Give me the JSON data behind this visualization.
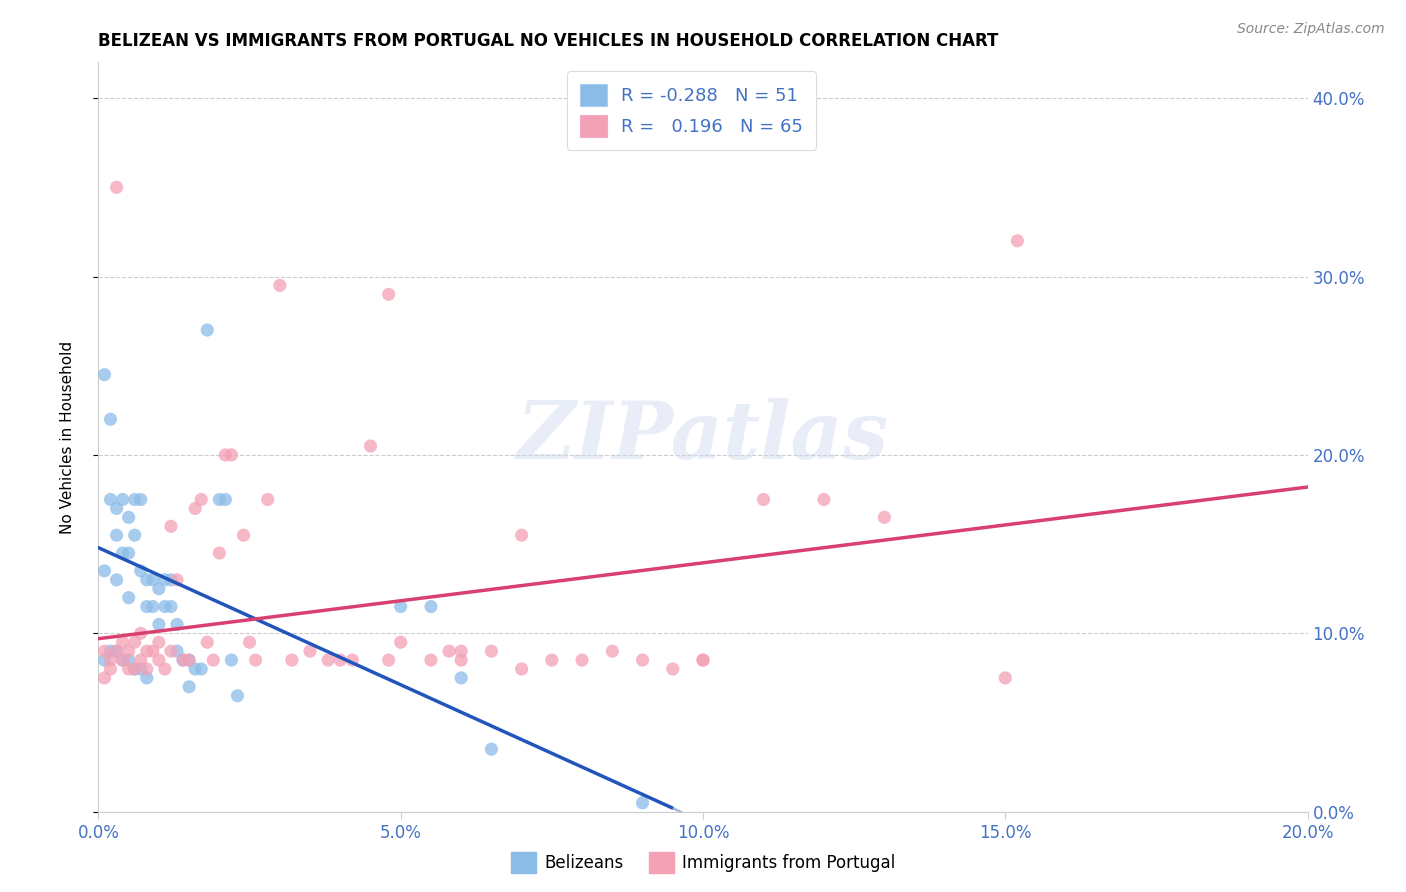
{
  "title": "BELIZEAN VS IMMIGRANTS FROM PORTUGAL NO VEHICLES IN HOUSEHOLD CORRELATION CHART",
  "source": "Source: ZipAtlas.com",
  "ylabel": "No Vehicles in Household",
  "legend_labels": [
    "Belizeans",
    "Immigrants from Portugal"
  ],
  "R_belizean": -0.288,
  "N_belizean": 51,
  "R_portugal": 0.196,
  "N_portugal": 65,
  "color_belizean": "#8bbce8",
  "color_portugal": "#f4a0b5",
  "line_color_belizean": "#2255bb",
  "line_color_portugal": "#d94070",
  "line_color_dashed": "#a0b8d8",
  "watermark": "ZIPatlas",
  "tick_color": "#4472c4",
  "xlim": [
    0,
    0.2
  ],
  "ylim": [
    0,
    0.42
  ],
  "xticks": [
    0.0,
    0.05,
    0.1,
    0.15,
    0.2
  ],
  "yticks": [
    0.0,
    0.1,
    0.2,
    0.3,
    0.4
  ],
  "bel_line_x0": 0.0,
  "bel_line_y0": 0.148,
  "bel_line_x1": 0.095,
  "bel_line_y1": 0.002,
  "por_line_x0": 0.0,
  "por_line_y0": 0.097,
  "por_line_x1": 0.2,
  "por_line_y1": 0.182,
  "bel_scatter_x": [
    0.001,
    0.001,
    0.002,
    0.002,
    0.003,
    0.003,
    0.003,
    0.004,
    0.004,
    0.005,
    0.005,
    0.005,
    0.006,
    0.006,
    0.007,
    0.007,
    0.008,
    0.008,
    0.009,
    0.009,
    0.01,
    0.01,
    0.011,
    0.011,
    0.012,
    0.012,
    0.013,
    0.013,
    0.014,
    0.015,
    0.015,
    0.016,
    0.017,
    0.018,
    0.02,
    0.021,
    0.022,
    0.023,
    0.001,
    0.002,
    0.003,
    0.004,
    0.005,
    0.006,
    0.007,
    0.008,
    0.05,
    0.055,
    0.06,
    0.065,
    0.09
  ],
  "bel_scatter_y": [
    0.245,
    0.135,
    0.22,
    0.175,
    0.17,
    0.155,
    0.13,
    0.175,
    0.145,
    0.165,
    0.145,
    0.12,
    0.175,
    0.155,
    0.175,
    0.135,
    0.13,
    0.115,
    0.13,
    0.115,
    0.125,
    0.105,
    0.13,
    0.115,
    0.13,
    0.115,
    0.105,
    0.09,
    0.085,
    0.085,
    0.07,
    0.08,
    0.08,
    0.27,
    0.175,
    0.175,
    0.085,
    0.065,
    0.085,
    0.09,
    0.09,
    0.085,
    0.085,
    0.08,
    0.08,
    0.075,
    0.115,
    0.115,
    0.075,
    0.035,
    0.005
  ],
  "por_scatter_x": [
    0.001,
    0.001,
    0.002,
    0.002,
    0.003,
    0.003,
    0.004,
    0.004,
    0.005,
    0.005,
    0.006,
    0.006,
    0.007,
    0.007,
    0.008,
    0.008,
    0.009,
    0.01,
    0.01,
    0.011,
    0.012,
    0.012,
    0.013,
    0.014,
    0.015,
    0.016,
    0.017,
    0.018,
    0.019,
    0.02,
    0.021,
    0.022,
    0.024,
    0.025,
    0.026,
    0.028,
    0.03,
    0.032,
    0.035,
    0.038,
    0.04,
    0.042,
    0.045,
    0.048,
    0.05,
    0.055,
    0.058,
    0.06,
    0.065,
    0.07,
    0.075,
    0.08,
    0.085,
    0.09,
    0.095,
    0.1,
    0.11,
    0.12,
    0.13,
    0.15,
    0.152,
    0.06,
    0.07,
    0.1,
    0.048
  ],
  "por_scatter_y": [
    0.09,
    0.075,
    0.085,
    0.08,
    0.35,
    0.09,
    0.095,
    0.085,
    0.09,
    0.08,
    0.095,
    0.08,
    0.1,
    0.085,
    0.09,
    0.08,
    0.09,
    0.085,
    0.095,
    0.08,
    0.09,
    0.16,
    0.13,
    0.085,
    0.085,
    0.17,
    0.175,
    0.095,
    0.085,
    0.145,
    0.2,
    0.2,
    0.155,
    0.095,
    0.085,
    0.175,
    0.295,
    0.085,
    0.09,
    0.085,
    0.085,
    0.085,
    0.205,
    0.085,
    0.095,
    0.085,
    0.09,
    0.085,
    0.09,
    0.08,
    0.085,
    0.085,
    0.09,
    0.085,
    0.08,
    0.085,
    0.175,
    0.175,
    0.165,
    0.075,
    0.32,
    0.09,
    0.155,
    0.085,
    0.29
  ]
}
